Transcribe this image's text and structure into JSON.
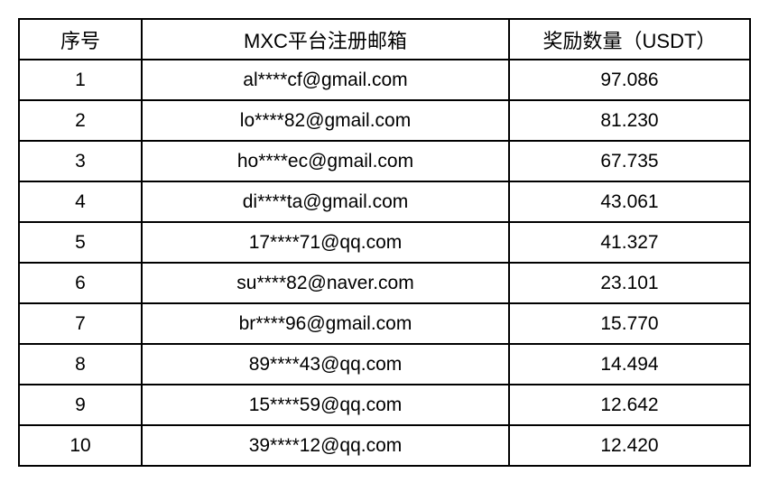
{
  "table": {
    "headers": {
      "no": "序号",
      "email": "MXC平台注册邮箱",
      "reward": "奖励数量（USDT）"
    },
    "rows": [
      {
        "no": "1",
        "email": "al****cf@gmail.com",
        "reward": "97.086"
      },
      {
        "no": "2",
        "email": "lo****82@gmail.com",
        "reward": "81.230"
      },
      {
        "no": "3",
        "email": "ho****ec@gmail.com",
        "reward": "67.735"
      },
      {
        "no": "4",
        "email": "di****ta@gmail.com",
        "reward": "43.061"
      },
      {
        "no": "5",
        "email": "17****71@qq.com",
        "reward": "41.327"
      },
      {
        "no": "6",
        "email": "su****82@naver.com",
        "reward": "23.101"
      },
      {
        "no": "7",
        "email": "br****96@gmail.com",
        "reward": "15.770"
      },
      {
        "no": "8",
        "email": "89****43@qq.com",
        "reward": "14.494"
      },
      {
        "no": "9",
        "email": "15****59@qq.com",
        "reward": "12.642"
      },
      {
        "no": "10",
        "email": "39****12@qq.com",
        "reward": "12.420"
      }
    ]
  }
}
